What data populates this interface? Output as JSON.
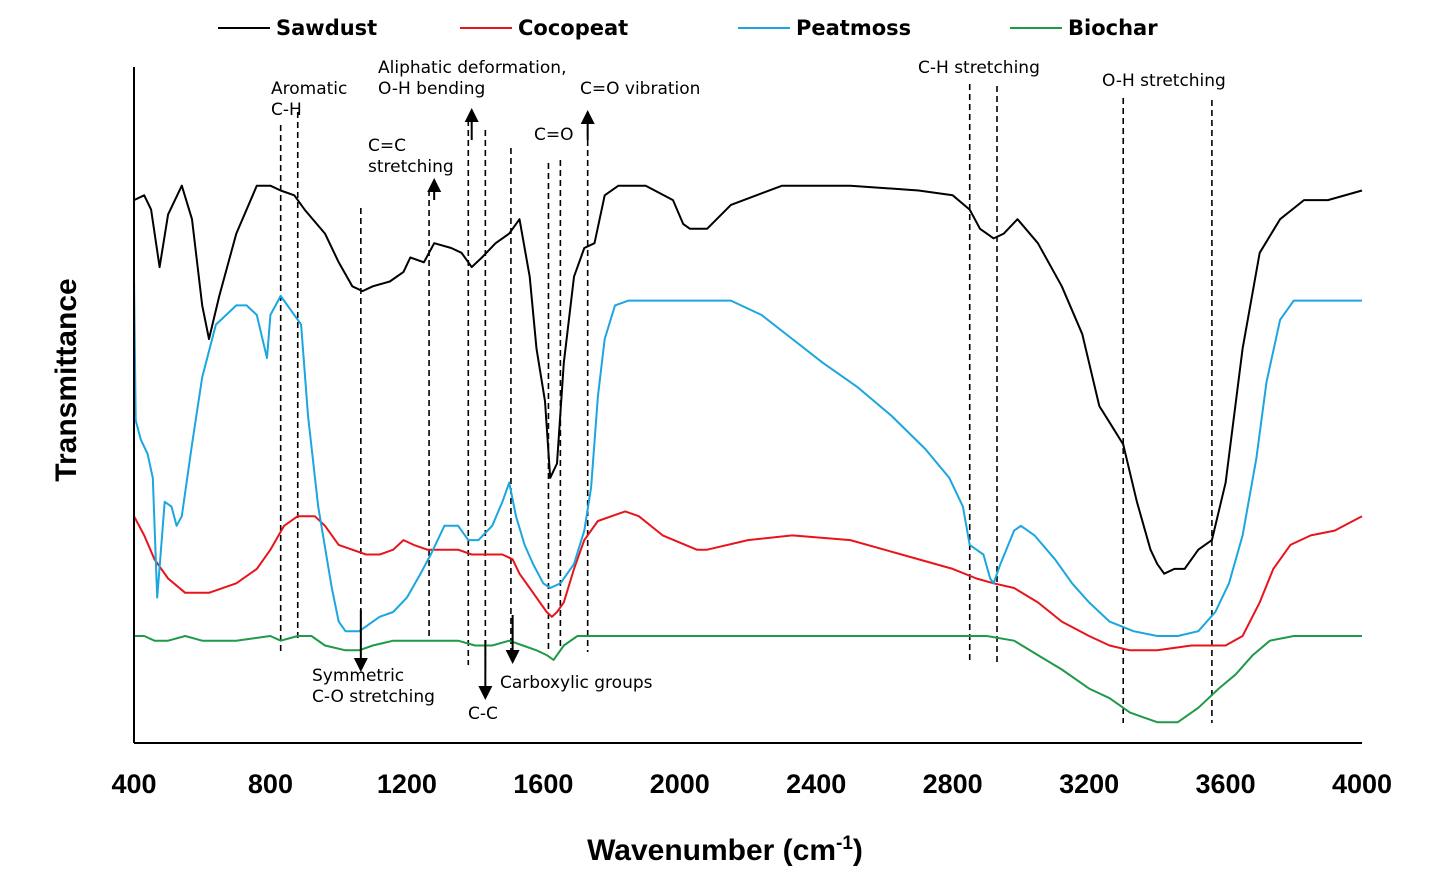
{
  "chart_data": {
    "type": "line",
    "xlabel": "Wavenumber (cm",
    "xlabel_superscript": "-1",
    "xlabel_suffix": ")",
    "ylabel": "Transmittance",
    "xlim": [
      400,
      4000
    ],
    "x_ticks": [
      400,
      800,
      1200,
      1600,
      2000,
      2400,
      2800,
      3200,
      3600,
      4000
    ],
    "y_ticks_shown": false,
    "grid": false,
    "legend_position": "top",
    "series": [
      {
        "name": "Sawdust",
        "color": "#000000",
        "points": [
          [
            400,
            86
          ],
          [
            430,
            87
          ],
          [
            450,
            84
          ],
          [
            475,
            72
          ],
          [
            500,
            83
          ],
          [
            540,
            89
          ],
          [
            570,
            82
          ],
          [
            600,
            64
          ],
          [
            620,
            57
          ],
          [
            650,
            66
          ],
          [
            700,
            79
          ],
          [
            760,
            89
          ],
          [
            800,
            89
          ],
          [
            830,
            88
          ],
          [
            870,
            87
          ],
          [
            900,
            84
          ],
          [
            960,
            79
          ],
          [
            1000,
            73
          ],
          [
            1040,
            68
          ],
          [
            1070,
            67
          ],
          [
            1100,
            68
          ],
          [
            1150,
            69
          ],
          [
            1190,
            71
          ],
          [
            1210,
            74
          ],
          [
            1250,
            73
          ],
          [
            1280,
            77
          ],
          [
            1330,
            76
          ],
          [
            1360,
            75
          ],
          [
            1390,
            72
          ],
          [
            1420,
            74
          ],
          [
            1460,
            77
          ],
          [
            1500,
            79
          ],
          [
            1530,
            82
          ],
          [
            1560,
            70
          ],
          [
            1580,
            55
          ],
          [
            1605,
            44
          ],
          [
            1620,
            28
          ],
          [
            1640,
            31
          ],
          [
            1660,
            52
          ],
          [
            1690,
            70
          ],
          [
            1720,
            76
          ],
          [
            1750,
            77
          ],
          [
            1780,
            87
          ],
          [
            1820,
            89
          ],
          [
            1900,
            89
          ],
          [
            1980,
            86
          ],
          [
            2010,
            81
          ],
          [
            2030,
            80
          ],
          [
            2080,
            80
          ],
          [
            2150,
            85
          ],
          [
            2300,
            89
          ],
          [
            2500,
            89
          ],
          [
            2700,
            88
          ],
          [
            2800,
            87
          ],
          [
            2850,
            84
          ],
          [
            2880,
            80
          ],
          [
            2900,
            79
          ],
          [
            2920,
            78
          ],
          [
            2950,
            79
          ],
          [
            2990,
            82
          ],
          [
            3050,
            77
          ],
          [
            3120,
            68
          ],
          [
            3180,
            58
          ],
          [
            3230,
            43
          ],
          [
            3265,
            39
          ],
          [
            3300,
            35
          ],
          [
            3340,
            23
          ],
          [
            3380,
            13
          ],
          [
            3400,
            10
          ],
          [
            3420,
            8
          ],
          [
            3450,
            9
          ],
          [
            3480,
            9
          ],
          [
            3520,
            13
          ],
          [
            3560,
            15
          ],
          [
            3600,
            27
          ],
          [
            3650,
            55
          ],
          [
            3700,
            75
          ],
          [
            3760,
            82
          ],
          [
            3830,
            86
          ],
          [
            3900,
            86
          ],
          [
            4000,
            88
          ]
        ]
      },
      {
        "name": "Cocopeat",
        "color": "#e8141c",
        "points": [
          [
            400,
            20
          ],
          [
            430,
            16
          ],
          [
            460,
            11
          ],
          [
            500,
            7
          ],
          [
            550,
            4
          ],
          [
            620,
            4
          ],
          [
            700,
            6
          ],
          [
            760,
            9
          ],
          [
            800,
            13
          ],
          [
            840,
            18
          ],
          [
            880,
            20
          ],
          [
            930,
            20
          ],
          [
            960,
            18
          ],
          [
            1000,
            14
          ],
          [
            1040,
            13
          ],
          [
            1080,
            12
          ],
          [
            1120,
            12
          ],
          [
            1160,
            13
          ],
          [
            1190,
            15
          ],
          [
            1220,
            14
          ],
          [
            1260,
            13
          ],
          [
            1300,
            13
          ],
          [
            1350,
            13
          ],
          [
            1390,
            12
          ],
          [
            1430,
            12
          ],
          [
            1480,
            12
          ],
          [
            1510,
            11
          ],
          [
            1530,
            8
          ],
          [
            1560,
            5
          ],
          [
            1590,
            2
          ],
          [
            1610,
            0
          ],
          [
            1625,
            -1
          ],
          [
            1640,
            0
          ],
          [
            1660,
            2
          ],
          [
            1690,
            9
          ],
          [
            1720,
            15
          ],
          [
            1760,
            19
          ],
          [
            1800,
            20
          ],
          [
            1840,
            21
          ],
          [
            1880,
            20
          ],
          [
            1950,
            16
          ],
          [
            2050,
            13
          ],
          [
            2080,
            13
          ],
          [
            2200,
            15
          ],
          [
            2330,
            16
          ],
          [
            2500,
            15
          ],
          [
            2650,
            12
          ],
          [
            2800,
            9
          ],
          [
            2870,
            7
          ],
          [
            2920,
            6
          ],
          [
            2980,
            5
          ],
          [
            3050,
            2
          ],
          [
            3120,
            -2
          ],
          [
            3200,
            -5
          ],
          [
            3260,
            -7
          ],
          [
            3320,
            -8
          ],
          [
            3400,
            -8
          ],
          [
            3500,
            -7
          ],
          [
            3600,
            -7
          ],
          [
            3650,
            -5
          ],
          [
            3700,
            2
          ],
          [
            3740,
            9
          ],
          [
            3790,
            14
          ],
          [
            3850,
            16
          ],
          [
            3920,
            17
          ],
          [
            4000,
            20
          ]
        ]
      },
      {
        "name": "Peatmoss",
        "color": "#1ba6e0",
        "points": [
          [
            400,
            70
          ],
          [
            405,
            40
          ],
          [
            420,
            36
          ],
          [
            440,
            33
          ],
          [
            455,
            28
          ],
          [
            468,
            3
          ],
          [
            478,
            12
          ],
          [
            490,
            23
          ],
          [
            510,
            22
          ],
          [
            525,
            18
          ],
          [
            540,
            20
          ],
          [
            570,
            35
          ],
          [
            600,
            49
          ],
          [
            640,
            60
          ],
          [
            670,
            62
          ],
          [
            700,
            64
          ],
          [
            730,
            64
          ],
          [
            760,
            62
          ],
          [
            780,
            56
          ],
          [
            790,
            53
          ],
          [
            800,
            62
          ],
          [
            830,
            66
          ],
          [
            860,
            63
          ],
          [
            890,
            60
          ],
          [
            910,
            41
          ],
          [
            940,
            22
          ],
          [
            980,
            5
          ],
          [
            1000,
            -2
          ],
          [
            1020,
            -4
          ],
          [
            1060,
            -4
          ],
          [
            1080,
            -3
          ],
          [
            1120,
            -1
          ],
          [
            1160,
            0
          ],
          [
            1200,
            3
          ],
          [
            1240,
            8
          ],
          [
            1270,
            12
          ],
          [
            1310,
            18
          ],
          [
            1350,
            18
          ],
          [
            1380,
            15
          ],
          [
            1410,
            15
          ],
          [
            1450,
            18
          ],
          [
            1480,
            23
          ],
          [
            1500,
            27
          ],
          [
            1520,
            20
          ],
          [
            1545,
            14
          ],
          [
            1570,
            10
          ],
          [
            1600,
            6
          ],
          [
            1620,
            5
          ],
          [
            1650,
            6
          ],
          [
            1690,
            10
          ],
          [
            1720,
            17
          ],
          [
            1740,
            26
          ],
          [
            1760,
            45
          ],
          [
            1780,
            57
          ],
          [
            1810,
            64
          ],
          [
            1850,
            65
          ],
          [
            1950,
            65
          ],
          [
            2150,
            65
          ],
          [
            2240,
            62
          ],
          [
            2330,
            57
          ],
          [
            2420,
            52
          ],
          [
            2520,
            47
          ],
          [
            2620,
            41
          ],
          [
            2720,
            34
          ],
          [
            2790,
            28
          ],
          [
            2830,
            22
          ],
          [
            2850,
            14
          ],
          [
            2870,
            13
          ],
          [
            2890,
            12
          ],
          [
            2910,
            7
          ],
          [
            2920,
            6
          ],
          [
            2940,
            10
          ],
          [
            2980,
            17
          ],
          [
            3000,
            18
          ],
          [
            3040,
            16
          ],
          [
            3100,
            11
          ],
          [
            3150,
            6
          ],
          [
            3200,
            2
          ],
          [
            3260,
            -2
          ],
          [
            3330,
            -4
          ],
          [
            3400,
            -5
          ],
          [
            3460,
            -5
          ],
          [
            3520,
            -4
          ],
          [
            3570,
            0
          ],
          [
            3610,
            6
          ],
          [
            3650,
            16
          ],
          [
            3690,
            32
          ],
          [
            3720,
            48
          ],
          [
            3760,
            61
          ],
          [
            3800,
            65
          ],
          [
            3900,
            65
          ],
          [
            4000,
            65
          ]
        ]
      },
      {
        "name": "Biochar",
        "color": "#1f9a48",
        "points": [
          [
            400,
            -5
          ],
          [
            430,
            -5
          ],
          [
            460,
            -6
          ],
          [
            500,
            -6
          ],
          [
            550,
            -5
          ],
          [
            600,
            -6
          ],
          [
            700,
            -6
          ],
          [
            800,
            -5
          ],
          [
            830,
            -6
          ],
          [
            880,
            -5
          ],
          [
            920,
            -5
          ],
          [
            960,
            -7
          ],
          [
            1020,
            -8
          ],
          [
            1060,
            -8
          ],
          [
            1100,
            -7
          ],
          [
            1160,
            -6
          ],
          [
            1220,
            -6
          ],
          [
            1280,
            -6
          ],
          [
            1350,
            -6
          ],
          [
            1400,
            -7
          ],
          [
            1450,
            -7
          ],
          [
            1500,
            -6
          ],
          [
            1540,
            -7
          ],
          [
            1580,
            -8
          ],
          [
            1610,
            -9
          ],
          [
            1630,
            -10
          ],
          [
            1660,
            -7
          ],
          [
            1700,
            -5
          ],
          [
            1760,
            -5
          ],
          [
            2000,
            -5
          ],
          [
            2400,
            -5
          ],
          [
            2800,
            -5
          ],
          [
            2900,
            -5
          ],
          [
            2980,
            -6
          ],
          [
            3050,
            -9
          ],
          [
            3120,
            -12
          ],
          [
            3200,
            -16
          ],
          [
            3260,
            -18
          ],
          [
            3320,
            -21
          ],
          [
            3400,
            -23
          ],
          [
            3460,
            -23
          ],
          [
            3520,
            -20
          ],
          [
            3580,
            -16
          ],
          [
            3630,
            -13
          ],
          [
            3680,
            -9
          ],
          [
            3730,
            -6
          ],
          [
            3800,
            -5
          ],
          [
            3900,
            -5
          ],
          [
            4000,
            -5
          ]
        ]
      }
    ],
    "annotations": [
      {
        "lines": [
          "Aromatic",
          "C-H"
        ]
      },
      {
        "lines": [
          "Aliphatic deformation,",
          "O-H bending"
        ]
      },
      {
        "lines": [
          "C=C",
          "stretching"
        ]
      },
      {
        "lines": [
          "C=O"
        ]
      },
      {
        "lines": [
          "C=O vibration"
        ]
      },
      {
        "lines": [
          "C-H stretching"
        ]
      },
      {
        "lines": [
          "O-H stretching"
        ]
      },
      {
        "lines": [
          "Symmetric",
          "C-O stretching"
        ]
      },
      {
        "lines": [
          "Carboxylic groups"
        ]
      },
      {
        "lines": [
          "C-C"
        ]
      }
    ],
    "reference_lines_x": [
      830,
      880,
      1065,
      1265,
      1380,
      1430,
      1505,
      1615,
      1650,
      1730,
      2850,
      2930,
      3300,
      3560
    ],
    "arrows": [
      {
        "x": 1065,
        "direction": "down"
      },
      {
        "x": 1280,
        "direction": "up"
      },
      {
        "x": 1390,
        "direction": "up"
      },
      {
        "x": 1430,
        "direction": "down"
      },
      {
        "x": 1510,
        "direction": "down"
      },
      {
        "x": 1730,
        "direction": "up"
      }
    ]
  }
}
